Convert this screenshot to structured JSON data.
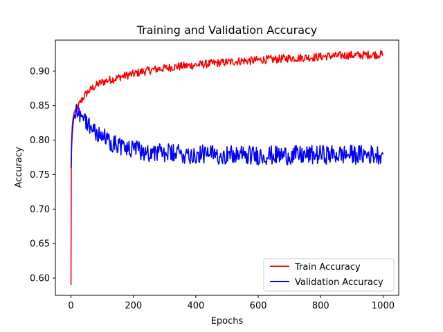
{
  "chart_data": {
    "type": "line",
    "title": "Training and Validation Accuracy",
    "xlabel": "Epochs",
    "ylabel": "Accuracy",
    "xlim": [
      -50,
      1050
    ],
    "ylim": [
      0.575,
      0.945
    ],
    "xticks": [
      0,
      200,
      400,
      600,
      800,
      1000
    ],
    "yticks": [
      0.6,
      0.65,
      0.7,
      0.75,
      0.8,
      0.85,
      0.9
    ],
    "grid": false,
    "legend_position": "bottom-right",
    "series": [
      {
        "name": "Train Accuracy",
        "color": "#ff0000",
        "x": [
          0,
          1,
          2,
          4,
          6,
          8,
          10,
          15,
          20,
          25,
          30,
          40,
          50,
          60,
          70,
          80,
          90,
          100,
          120,
          140,
          160,
          180,
          200,
          225,
          250,
          275,
          300,
          325,
          350,
          375,
          400,
          425,
          450,
          475,
          500,
          525,
          550,
          575,
          600,
          625,
          650,
          675,
          700,
          725,
          750,
          775,
          800,
          825,
          850,
          875,
          900,
          925,
          950,
          975,
          1000
        ],
        "y": [
          0.59,
          0.76,
          0.8,
          0.82,
          0.83,
          0.835,
          0.84,
          0.843,
          0.846,
          0.85,
          0.855,
          0.862,
          0.868,
          0.872,
          0.876,
          0.879,
          0.882,
          0.884,
          0.887,
          0.889,
          0.892,
          0.894,
          0.896,
          0.899,
          0.901,
          0.903,
          0.904,
          0.906,
          0.907,
          0.908,
          0.909,
          0.91,
          0.911,
          0.912,
          0.913,
          0.914,
          0.915,
          0.915,
          0.916,
          0.917,
          0.917,
          0.918,
          0.919,
          0.919,
          0.92,
          0.92,
          0.921,
          0.922,
          0.922,
          0.923,
          0.923,
          0.923,
          0.924,
          0.924,
          0.924
        ]
      },
      {
        "name": "Validation Accuracy",
        "color": "#0000ff",
        "x": [
          0,
          2,
          4,
          6,
          8,
          10,
          15,
          20,
          25,
          30,
          40,
          50,
          60,
          70,
          80,
          90,
          100,
          120,
          140,
          160,
          180,
          200,
          250,
          300,
          350,
          400,
          450,
          500,
          550,
          600,
          650,
          700,
          750,
          800,
          850,
          900,
          950,
          1000
        ],
        "y": [
          0.76,
          0.79,
          0.81,
          0.82,
          0.83,
          0.835,
          0.84,
          0.845,
          0.843,
          0.838,
          0.832,
          0.826,
          0.821,
          0.816,
          0.812,
          0.808,
          0.805,
          0.8,
          0.795,
          0.791,
          0.788,
          0.786,
          0.783,
          0.781,
          0.78,
          0.779,
          0.779,
          0.779,
          0.778,
          0.778,
          0.778,
          0.778,
          0.778,
          0.779,
          0.779,
          0.779,
          0.779,
          0.779
        ]
      }
    ]
  }
}
